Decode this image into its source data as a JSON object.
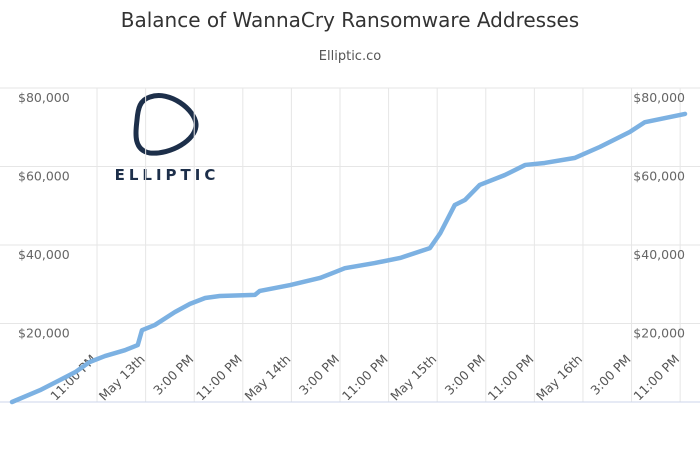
{
  "chart_data": {
    "type": "line",
    "title": "Balance of WannaCry Ransomware Addresses",
    "subtitle": "Elliptic.co",
    "logo_text": "ELLIPTIC",
    "x": [
      0,
      4.6,
      7.9,
      10.4,
      12.8,
      15.3,
      18.6,
      20.7,
      21.4,
      23.5,
      26.8,
      29.3,
      31.8,
      34.2,
      40,
      40.8,
      45.8,
      50.7,
      53.2,
      54.8,
      59.7,
      63.9,
      68.8,
      70.5,
      72.9,
      74.6,
      77,
      81.1,
      84.5,
      87.7,
      92.7,
      96.8,
      101.7,
      104.2,
      108.3,
      110.8
    ],
    "series": [
      {
        "color": "#7cb1e2",
        "values": [
          0,
          3000,
          5600,
          7600,
          10200,
          11700,
          13200,
          14500,
          18300,
          19600,
          22900,
          25000,
          26500,
          27000,
          27300,
          28300,
          29800,
          31600,
          33100,
          34100,
          35400,
          36700,
          39200,
          43000,
          50200,
          51500,
          55300,
          57800,
          60400,
          60900,
          62200,
          65000,
          68800,
          71300,
          72600,
          73400
        ]
      }
    ],
    "xlim": [
      0,
      110.8
    ],
    "xticks": [
      {
        "value": 14,
        "label": "11:00 PM"
      },
      {
        "value": 22,
        "label": "May 13th"
      },
      {
        "value": 30,
        "label": "3:00 PM"
      },
      {
        "value": 38,
        "label": "11:00 PM"
      },
      {
        "value": 46,
        "label": "May 14th"
      },
      {
        "value": 54,
        "label": "3:00 PM"
      },
      {
        "value": 62,
        "label": "11:00 PM"
      },
      {
        "value": 70,
        "label": "May 15th"
      },
      {
        "value": 78,
        "label": "3:00 PM"
      },
      {
        "value": 86,
        "label": "11:00 PM"
      },
      {
        "value": 94,
        "label": "May 16th"
      },
      {
        "value": 102,
        "label": "3:00 PM"
      },
      {
        "value": 110,
        "label": "11:00 PM"
      }
    ],
    "ylim": [
      0,
      80000
    ],
    "yticks": [
      {
        "value": 20000,
        "label": "$20,000"
      },
      {
        "value": 40000,
        "label": "$40,000"
      },
      {
        "value": 60000,
        "label": "$60,000"
      },
      {
        "value": 80000,
        "label": "$80,000"
      }
    ],
    "y2lim": [
      0,
      80000
    ],
    "y2ticks": [
      {
        "value": 20000,
        "label": "$20,000"
      },
      {
        "value": 40000,
        "label": "$40,000"
      },
      {
        "value": 60000,
        "label": "$60,000"
      },
      {
        "value": 80000,
        "label": "$80,000"
      }
    ],
    "grid": true
  }
}
